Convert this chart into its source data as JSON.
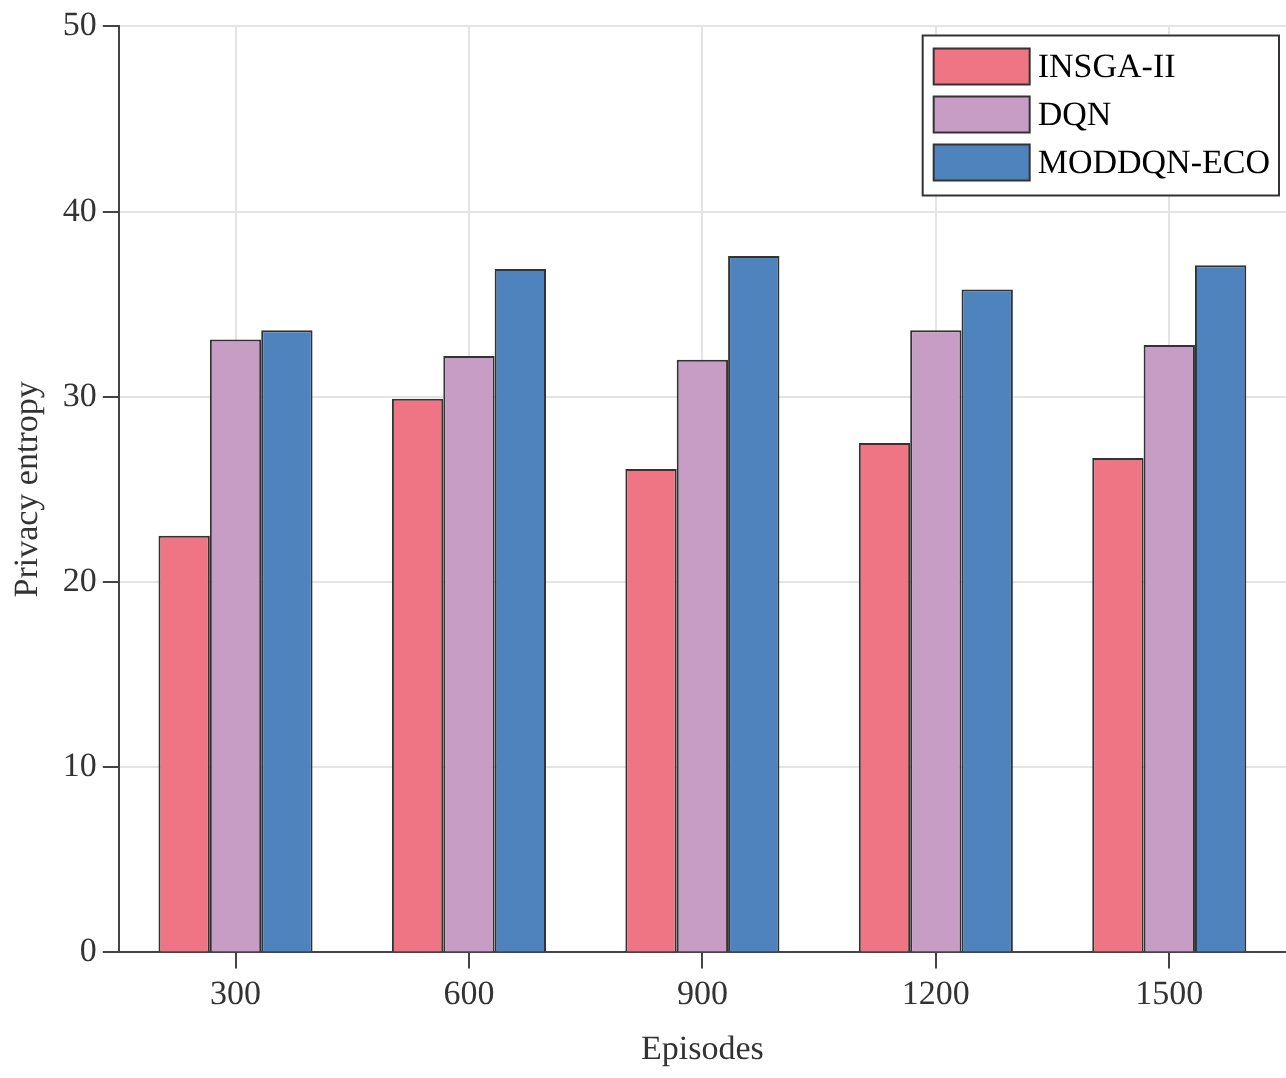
{
  "chart_data": {
    "type": "bar",
    "xlabel": "Episodes",
    "ylabel": "Privacy entropy",
    "categories": [
      "300",
      "600",
      "900",
      "1200",
      "1500"
    ],
    "series": [
      {
        "name": "INSGA-II",
        "color": "#ef7585",
        "values": [
          22.5,
          29.9,
          26.1,
          27.5,
          26.7
        ]
      },
      {
        "name": "DQN",
        "color": "#c79cc5",
        "values": [
          33.1,
          32.2,
          32.0,
          33.6,
          32.8
        ]
      },
      {
        "name": "MODDQN-ECO",
        "color": "#4f83be",
        "values": [
          33.6,
          36.9,
          37.6,
          35.8,
          37.1
        ]
      }
    ],
    "ylim": [
      0,
      50
    ],
    "yticks": [
      0,
      10,
      20,
      30,
      40,
      50
    ],
    "grid": true,
    "legend": "top right"
  }
}
